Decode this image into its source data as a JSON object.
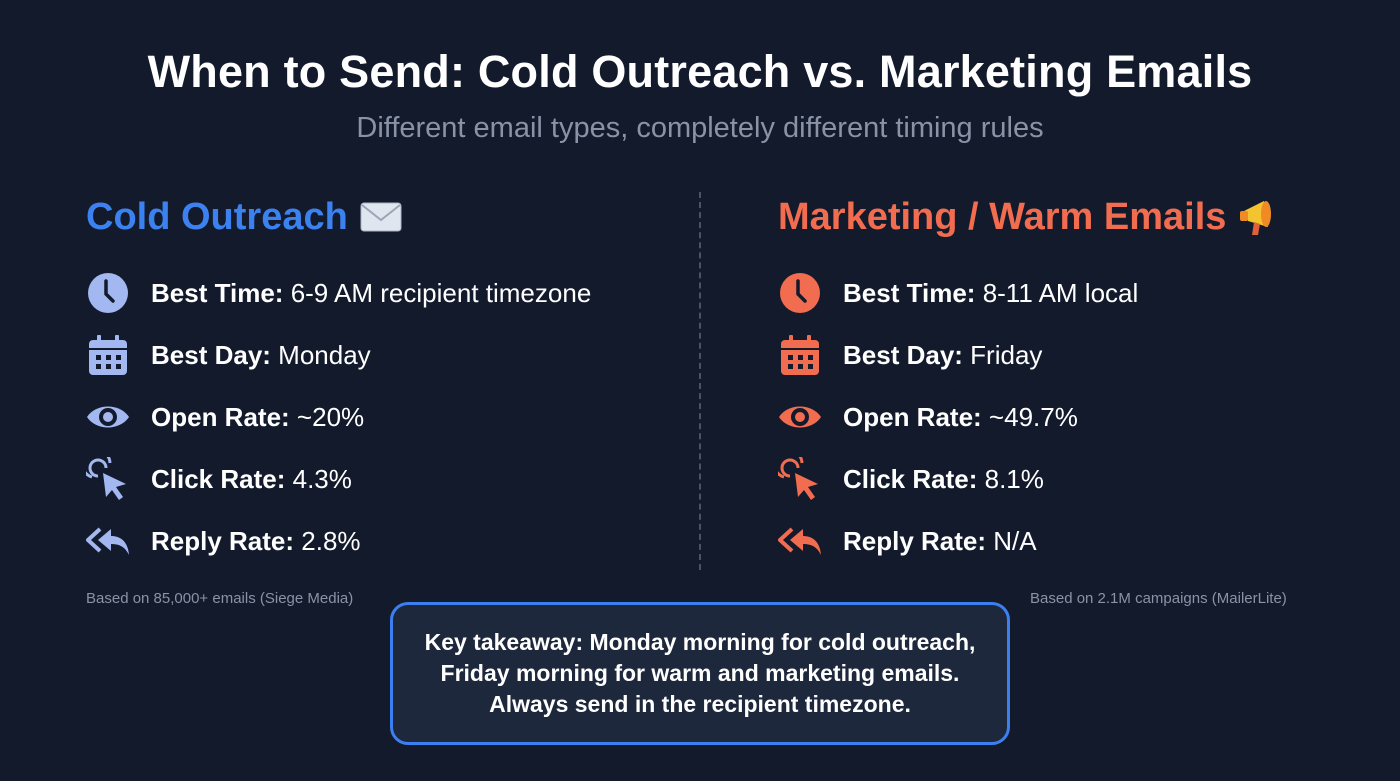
{
  "title": "When to Send: Cold Outreach vs. Marketing Emails",
  "subtitle": "Different email types, completely different timing rules",
  "colors": {
    "cold": "#3b82f0",
    "cold_icon": "#a3b7f0",
    "warm": "#f26d4f",
    "background": "#131a2c"
  },
  "cold": {
    "heading": "Cold Outreach",
    "heading_icon": "envelope-icon",
    "rows": [
      {
        "icon": "clock-icon",
        "label": "Best Time:",
        "value": "6-9 AM recipient timezone"
      },
      {
        "icon": "calendar-icon",
        "label": "Best Day:",
        "value": "Monday"
      },
      {
        "icon": "eye-icon",
        "label": "Open Rate:",
        "value": "~20%"
      },
      {
        "icon": "click-cursor-icon",
        "label": "Click Rate:",
        "value": "4.3%"
      },
      {
        "icon": "reply-all-icon",
        "label": "Reply Rate:",
        "value": "2.8%"
      }
    ],
    "source": "Based on 85,000+ emails (Siege Media)"
  },
  "warm": {
    "heading": "Marketing / Warm Emails",
    "heading_icon": "megaphone-icon",
    "rows": [
      {
        "icon": "clock-icon",
        "label": "Best Time:",
        "value": "8-11 AM local"
      },
      {
        "icon": "calendar-icon",
        "label": "Best Day:",
        "value": "Friday"
      },
      {
        "icon": "eye-icon",
        "label": "Open Rate:",
        "value": "~49.7%"
      },
      {
        "icon": "click-cursor-icon",
        "label": "Click Rate:",
        "value": "8.1%"
      },
      {
        "icon": "reply-all-icon",
        "label": "Reply Rate:",
        "value": "N/A"
      }
    ],
    "source": "Based on 2.1M campaigns (MailerLite)"
  },
  "takeaway": {
    "lines": [
      "Key takeaway: Monday morning for cold outreach,",
      "Friday morning for warm and marketing emails.",
      "Always send in the recipient timezone."
    ]
  }
}
